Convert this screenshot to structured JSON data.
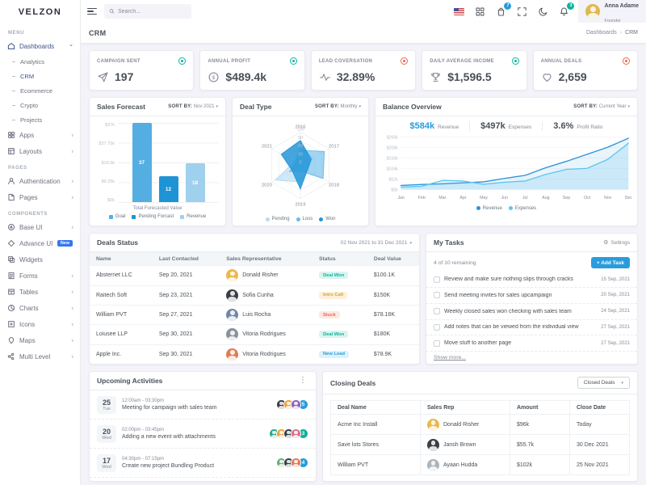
{
  "brand": "VELZON",
  "sidebar": {
    "items": [
      {
        "type": "section",
        "label": "MENU"
      },
      {
        "type": "item",
        "label": "Dashboards",
        "active": true
      },
      {
        "type": "sub",
        "label": "Analytics"
      },
      {
        "type": "sub",
        "label": "CRM",
        "active": true
      },
      {
        "type": "sub",
        "label": "Ecommerce"
      },
      {
        "type": "sub",
        "label": "Crypto"
      },
      {
        "type": "sub",
        "label": "Projects"
      },
      {
        "type": "item",
        "label": "Apps"
      },
      {
        "type": "item",
        "label": "Layouts"
      },
      {
        "type": "section",
        "label": "PAGES"
      },
      {
        "type": "item",
        "label": "Authentication"
      },
      {
        "type": "item",
        "label": "Pages"
      },
      {
        "type": "section",
        "label": "COMPONENTS"
      },
      {
        "type": "item",
        "label": "Base UI"
      },
      {
        "type": "item",
        "label": "Advance UI",
        "badge": "New"
      },
      {
        "type": "item",
        "label": "Widgets"
      },
      {
        "type": "item",
        "label": "Forms"
      },
      {
        "type": "item",
        "label": "Tables"
      },
      {
        "type": "item",
        "label": "Charts"
      },
      {
        "type": "item",
        "label": "Icons"
      },
      {
        "type": "item",
        "label": "Maps"
      },
      {
        "type": "item",
        "label": "Multi Level"
      }
    ]
  },
  "header": {
    "search_placeholder": "Search...",
    "cart_badge": "7",
    "notification_badge": "3",
    "user": {
      "name": "Anna Adame",
      "role": "Founder"
    }
  },
  "page": {
    "title": "CRM",
    "breadcrumb": [
      "Dashboards",
      "CRM"
    ]
  },
  "kpis": [
    {
      "label": "CAMPAIGN SENT",
      "value": "197",
      "status": "success"
    },
    {
      "label": "ANNUAL PROFIT",
      "value": "$489.4k",
      "status": "success"
    },
    {
      "label": "LEAD COVERSATION",
      "value": "32.89%",
      "status": "danger"
    },
    {
      "label": "DAILY AVERAGE INCOME",
      "value": "$1,596.5",
      "status": "success"
    },
    {
      "label": "ANNUAL DEALS",
      "value": "2,659",
      "status": "danger"
    }
  ],
  "panels": {
    "sales_forecast": {
      "title": "Sales Forecast",
      "sort_label": "SORT BY:",
      "sort_value": "Nov 2021"
    },
    "deal_type": {
      "title": "Deal Type",
      "sort_label": "SORT BY:",
      "sort_value": "Monthly"
    },
    "balance_overview": {
      "title": "Balance Overview",
      "sort_label": "SORT BY:",
      "sort_value": "Current Year",
      "stats": [
        {
          "value": "$584k",
          "label": "Revenue",
          "accent": "#299cdb"
        },
        {
          "value": "$497k",
          "label": "Expenses"
        },
        {
          "value": "3.6%",
          "label": "Profit Ratio"
        }
      ]
    }
  },
  "chart_data": [
    {
      "id": "sales_forecast",
      "type": "bar",
      "title": "Sales Forecast",
      "categories": [
        "Goal",
        "Pending Forcast",
        "Revenue"
      ],
      "values": [
        37,
        12,
        18
      ],
      "value_unit": "k",
      "yticks": [
        "$37k",
        "$27.75k",
        "$18.5k",
        "$9.25k",
        "$0k"
      ],
      "ylim": [
        0,
        37
      ],
      "xlabel": "Total Forecasted Value",
      "colors": [
        "#54aee2",
        "#1e93d6",
        "#9fd0ee"
      ],
      "legend": [
        "Goal",
        "Pending Forcast",
        "Revenue"
      ],
      "legend_position": "bottom",
      "grid": true
    },
    {
      "id": "deal_type",
      "type": "radar",
      "title": "Deal Type",
      "axes": [
        "2016",
        "2017",
        "2018",
        "2019",
        "2020",
        "2021"
      ],
      "rticks": [
        120,
        90,
        60,
        30,
        0
      ],
      "rlim": [
        0,
        120
      ],
      "series": [
        {
          "name": "Pending",
          "color": "#b3dcf3",
          "opacity": 0.62,
          "values": [
            80,
            50,
            32,
            60,
            105,
            25
          ]
        },
        {
          "name": "Loss",
          "color": "#68bce9",
          "opacity": 0.62,
          "values": [
            55,
            100,
            95,
            20,
            45,
            20
          ]
        },
        {
          "name": "Won",
          "color": "#2496d8",
          "opacity": 0.85,
          "values": [
            90,
            45,
            30,
            85,
            35,
            80
          ]
        }
      ],
      "legend_position": "bottom"
    },
    {
      "id": "balance_overview",
      "type": "area",
      "title": "Balance Overview",
      "x": [
        "Jan",
        "Feb",
        "Mar",
        "Apr",
        "May",
        "Jun",
        "Jul",
        "Aug",
        "Sep",
        "Oct",
        "Nov",
        "Dec"
      ],
      "yticks": [
        "$260k",
        "$208k",
        "$156k",
        "$104k",
        "$52k",
        "$0k"
      ],
      "ylim": [
        0,
        260
      ],
      "series": [
        {
          "name": "Revenue",
          "color": "#2b93d9",
          "values": [
            20,
            25,
            28,
            33,
            38,
            55,
            70,
            108,
            140,
            175,
            210,
            255
          ]
        },
        {
          "name": "Expenses",
          "color": "#5ec6ef",
          "values": [
            12,
            16,
            45,
            42,
            26,
            36,
            42,
            75,
            100,
            105,
            150,
            230
          ]
        }
      ],
      "legend_position": "bottom",
      "grid": true
    }
  ],
  "deals_status": {
    "title": "Deals Status",
    "date_range": "02 Nov 2021 to 31 Dec 2021",
    "columns": [
      "Name",
      "Last Contacted",
      "Sales Representative",
      "Status",
      "Deal Value"
    ],
    "rows": [
      {
        "name": "Absternet LLC",
        "last_contacted": "Sep 20, 2021",
        "rep": "Donald Risher",
        "status": "Deal Won",
        "status_type": "success",
        "value": "$100.1K",
        "avatar_color": "#eab94d"
      },
      {
        "name": "Raitech Soft",
        "last_contacted": "Sep 23, 2021",
        "rep": "Sofia Cunha",
        "status": "Intro Call",
        "status_type": "warning",
        "value": "$150K",
        "avatar_color": "#3a3f45"
      },
      {
        "name": "William PVT",
        "last_contacted": "Sep 27, 2021",
        "rep": "Luis Rocha",
        "status": "Stuck",
        "status_type": "danger",
        "value": "$78.18K",
        "avatar_color": "#7087a8"
      },
      {
        "name": "Loiusee LLP",
        "last_contacted": "Sep 30, 2021",
        "rep": "Vitoria Rodrigues",
        "status": "Deal Won",
        "status_type": "success",
        "value": "$180K",
        "avatar_color": "#8a939b"
      },
      {
        "name": "Apple Inc.",
        "last_contacted": "Sep 30, 2021",
        "rep": "Vitoria Rodrigues",
        "status": "New Lead",
        "status_type": "info",
        "value": "$78.9K",
        "avatar_color": "#e07b54"
      }
    ]
  },
  "my_tasks": {
    "title": "My Tasks",
    "settings_label": "Settings",
    "remaining": "4 of 10 remaining",
    "add_task_label": "+ Add Task",
    "show_more_label": "Show more...",
    "tasks": [
      {
        "text": "Review and make sure nothing slips through cracks",
        "date": "15 Sep, 2021"
      },
      {
        "text": "Send meeting invites for sales upcampaign",
        "date": "20 Sep, 2021"
      },
      {
        "text": "Weekly closed sales won checking with sales team",
        "date": "24 Sep, 2021"
      },
      {
        "text": "Add notes that can be viewed from the individual view",
        "date": "27 Sep, 2021"
      },
      {
        "text": "Move stuff to another page",
        "date": "27 Sep, 2021"
      }
    ]
  },
  "upcoming_activities": {
    "title": "Upcoming Activities",
    "items": [
      {
        "day": "25",
        "weekday": "Tue",
        "time": "12:00am - 03:30pm",
        "title": "Meeting for campaign with sales team",
        "avatar_colors": [
          "#3a3f45",
          "#e8a33d",
          "#8a5fbf"
        ],
        "count": "5",
        "count_color": "#299cdb"
      },
      {
        "day": "20",
        "weekday": "Wed",
        "time": "02:00pm - 03:45pm",
        "title": "Adding a new event with attachments",
        "avatar_colors": [
          "#2aa98a",
          "#e8a33d",
          "#3a3f45",
          "#d4738d"
        ],
        "count": "3",
        "count_color": "#0ab39c"
      },
      {
        "day": "17",
        "weekday": "Wed",
        "time": "04:30pm - 07:15pm",
        "title": "Create new project Bundling Product",
        "avatar_colors": [
          "#67b173",
          "#3a3f45",
          "#e07b54"
        ],
        "count": "4",
        "count_color": "#299cdb"
      }
    ]
  },
  "closing_deals": {
    "title": "Closing Deals",
    "filter_value": "Closed Deals",
    "columns": [
      "Deal Name",
      "Sales Rep",
      "Amount",
      "Close Date"
    ],
    "rows": [
      {
        "name": "Acme Inc Install",
        "rep": "Donald Risher",
        "amount": "$96k",
        "close_date": "Today",
        "avatar_color": "#eab94d"
      },
      {
        "name": "Save lots Stores",
        "rep": "Jansh Brown",
        "amount": "$55.7k",
        "close_date": "30 Dec 2021",
        "avatar_color": "#3a3f45"
      },
      {
        "name": "William PVT",
        "rep": "Ayaan Hudda",
        "amount": "$102k",
        "close_date": "25 Nov 2021",
        "avatar_color": "#aab4bd"
      }
    ]
  }
}
